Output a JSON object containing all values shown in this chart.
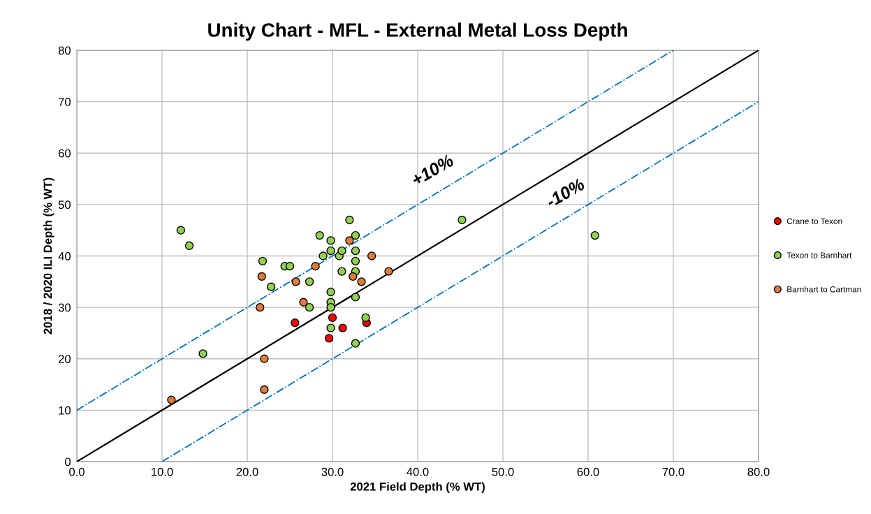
{
  "chart_data": {
    "type": "scatter",
    "title": "Unity Chart - MFL - External Metal Loss Depth",
    "xlabel": "2021 Field Depth (% WT)",
    "ylabel": "2018 / 2020 ILI Depth (% WT)",
    "xlim": [
      0,
      80
    ],
    "ylim": [
      0,
      80
    ],
    "xticks": [
      {
        "value": 0,
        "label": "0.0"
      },
      {
        "value": 10,
        "label": "10.0"
      },
      {
        "value": 20,
        "label": "20.0"
      },
      {
        "value": 30,
        "label": "30.0"
      },
      {
        "value": 40,
        "label": "40.0"
      },
      {
        "value": 50,
        "label": "50.0"
      },
      {
        "value": 60,
        "label": "60.0"
      },
      {
        "value": 70,
        "label": "70.0"
      },
      {
        "value": 80,
        "label": "80.0"
      }
    ],
    "yticks": [
      0,
      10,
      20,
      30,
      40,
      50,
      60,
      70,
      80
    ],
    "grid": true,
    "legend": "right",
    "marker": "circle",
    "series": [
      {
        "name": "Crane to Texon",
        "color": "#ff0000",
        "x": [
          25.6,
          30.0,
          29.6,
          31.2,
          34.0
        ],
        "values": [
          27,
          28,
          24,
          26,
          27
        ]
      },
      {
        "name": "Texon to Barnhart",
        "color": "#92d050",
        "x": [
          12.2,
          13.2,
          14.8,
          21.8,
          22.8,
          24.4,
          25.0,
          27.3,
          27.3,
          28.5,
          28.9,
          29.8,
          29.8,
          29.8,
          29.8,
          29.8,
          29.8,
          30.8,
          31.1,
          31.1,
          32.0,
          32.7,
          32.7,
          32.7,
          32.7,
          32.7,
          32.7,
          33.9,
          45.2,
          60.8
        ],
        "values": [
          45,
          42,
          21,
          39,
          34,
          38,
          38,
          35,
          30,
          44,
          40,
          43,
          41,
          33,
          31,
          30,
          26,
          40,
          41,
          37,
          47,
          44,
          41,
          39,
          37,
          32,
          23,
          28,
          47,
          44
        ]
      },
      {
        "name": "Barnhart to Cartman",
        "color": "#e07b39",
        "x": [
          11.1,
          21.7,
          21.5,
          22.0,
          22.0,
          25.7,
          26.6,
          28.0,
          32.0,
          32.4,
          33.4,
          34.6,
          36.6
        ],
        "values": [
          12,
          36,
          30,
          20,
          14,
          35,
          31,
          38,
          43,
          36,
          35,
          40,
          37
        ]
      },
      {
        "type": "line",
        "color": "#000000",
        "line_style": "solid",
        "marker": "none",
        "x": [
          0,
          80
        ],
        "values": [
          0,
          80
        ]
      },
      {
        "type": "line",
        "color": "#0070c0",
        "line_style": "dashdot",
        "marker": "none",
        "x": [
          0,
          70
        ],
        "values": [
          10,
          80
        ]
      },
      {
        "type": "line",
        "color": "#0070c0",
        "line_style": "dashdot",
        "marker": "none",
        "x": [
          10,
          80
        ],
        "values": [
          0,
          70
        ]
      }
    ],
    "annotations": [
      "+10%",
      "-10%"
    ]
  }
}
